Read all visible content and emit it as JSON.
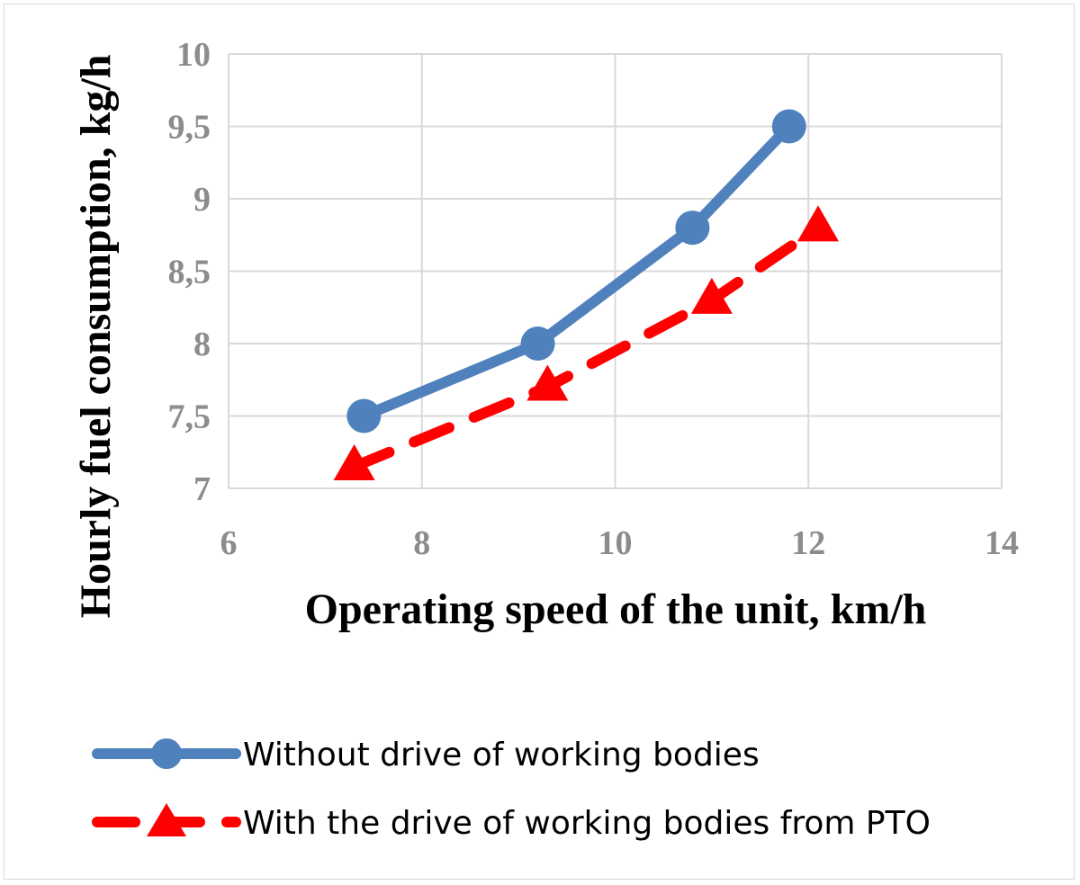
{
  "chart_data": {
    "type": "line",
    "title": "",
    "xlabel": "Operating speed of the unit, km/h",
    "ylabel": "Hourly fuel consumption, kg/h",
    "xlim": [
      6,
      14
    ],
    "ylim": [
      7,
      10
    ],
    "xticks": [
      6,
      8,
      10,
      12,
      14
    ],
    "xtick_labels": [
      "6",
      "8",
      "10",
      "12",
      "14"
    ],
    "yticks": [
      7,
      7.5,
      8,
      8.5,
      9,
      9.5,
      10
    ],
    "ytick_labels": [
      "7",
      "7,5",
      "8",
      "8,5",
      "9",
      "9,5",
      "10"
    ],
    "grid": true,
    "legend_position": "bottom",
    "series": [
      {
        "name": "Without drive of working bodies",
        "color": "#4f81bd",
        "marker": "circle",
        "line_style": "solid",
        "x": [
          7.4,
          9.2,
          10.8,
          11.8
        ],
        "y": [
          7.5,
          8.0,
          8.8,
          9.5
        ]
      },
      {
        "name": "With the drive of working bodies from PTO",
        "color": "#ff0000",
        "marker": "triangle",
        "line_style": "dashed",
        "x": [
          7.3,
          9.3,
          11.0,
          12.1
        ],
        "y": [
          7.15,
          7.7,
          8.3,
          8.8
        ]
      }
    ]
  }
}
